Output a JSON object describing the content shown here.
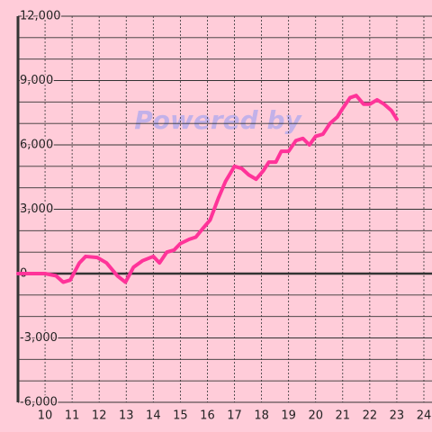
{
  "chart_data": {
    "type": "line",
    "watermark": "Powered by",
    "x": [
      9.0,
      10.0,
      10.4,
      10.67,
      10.93,
      11.27,
      11.5,
      11.93,
      12.27,
      12.67,
      12.97,
      13.27,
      13.6,
      14.0,
      14.23,
      14.5,
      14.77,
      15.0,
      15.33,
      15.57,
      15.83,
      16.1,
      16.4,
      16.67,
      17.0,
      17.27,
      17.53,
      17.8,
      18.07,
      18.27,
      18.53,
      18.73,
      19.0,
      19.27,
      19.53,
      19.77,
      20.0,
      20.27,
      20.53,
      20.8,
      21.0,
      21.27,
      21.5,
      21.77,
      22.0,
      22.27,
      22.53,
      22.8,
      23.0
    ],
    "series": [
      {
        "color": "#ff3399",
        "values": [
          0,
          0,
          -100,
          -400,
          -300,
          500,
          800,
          750,
          500,
          -100,
          -400,
          300,
          600,
          800,
          500,
          1000,
          1100,
          1400,
          1600,
          1700,
          2100,
          2500,
          3500,
          4300,
          5000,
          4900,
          4600,
          4400,
          4800,
          5200,
          5200,
          5700,
          5700,
          6200,
          6300,
          6000,
          6400,
          6500,
          7000,
          7300,
          7700,
          8200,
          8300,
          7900,
          7900,
          8100,
          7900,
          7600,
          7200
        ]
      }
    ],
    "xlim": [
      9,
      24.3
    ],
    "xticks": [
      10,
      11,
      12,
      13,
      14,
      15,
      16,
      17,
      18,
      19,
      20,
      21,
      22,
      23,
      24
    ],
    "ylim": [
      -6000,
      12000
    ],
    "yticks": [
      {
        "value": -6000,
        "label": "-6,000"
      },
      {
        "value": -3000,
        "label": "-3,000"
      },
      0,
      {
        "value": 3000,
        "label": "3,000"
      },
      {
        "value": 6000,
        "label": "6,000"
      },
      {
        "value": 9000,
        "label": "9,000"
      },
      {
        "value": 12000,
        "label": "12,000"
      }
    ],
    "y_minor_ticks": [
      -5000,
      -4000,
      -2000,
      -1000,
      1000,
      2000,
      4000,
      5000,
      7000,
      8000,
      10000,
      11000
    ],
    "grid": true
  }
}
